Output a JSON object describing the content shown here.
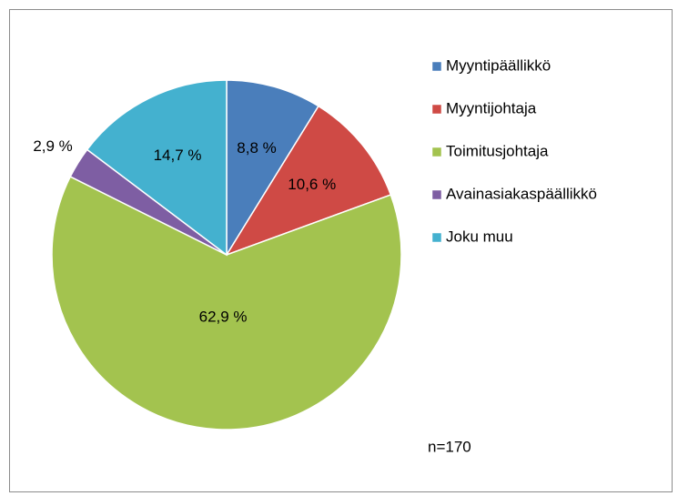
{
  "chart_data": {
    "type": "pie",
    "categories": [
      "Myyntipäällikkö",
      "Myyntijohtaja",
      "Toimitusjohtaja",
      "Avainasiakaspäällikkö",
      "Joku muu"
    ],
    "values": [
      8.8,
      10.6,
      62.9,
      2.9,
      14.7
    ],
    "value_labels": [
      "8,8 %",
      "10,6 %",
      "62,9 %",
      "2,9 %",
      "14,7 %"
    ],
    "colors": [
      "#4a7ebb",
      "#cf4a45",
      "#a3c34f",
      "#7e5ea3",
      "#44b1cf"
    ],
    "annotations": [
      "n=170"
    ]
  }
}
